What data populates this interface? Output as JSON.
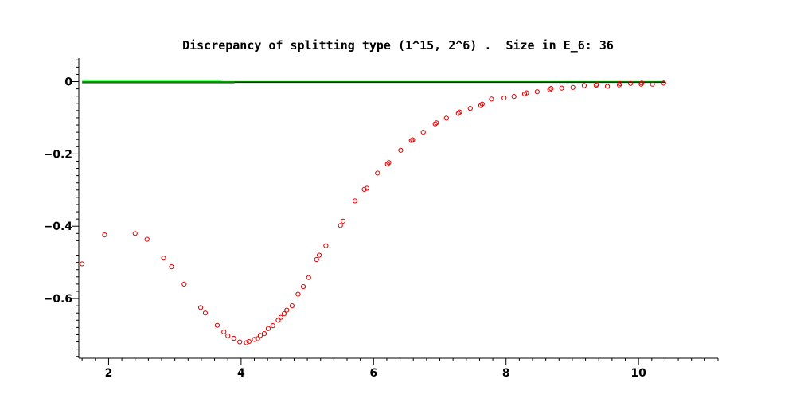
{
  "chart_data": {
    "type": "scatter",
    "title": "Discrepancy of splitting type (1^15, 2^6) .  Size in E_6: 36",
    "xlabel": "",
    "ylabel": "",
    "xlim": [
      1.55,
      11.2
    ],
    "ylim": [
      -0.765,
      0.065
    ],
    "x_ticks": [
      2,
      4,
      6,
      8,
      10
    ],
    "x_tick_labels": [
      "2",
      "4",
      "6",
      "8",
      "10"
    ],
    "y_ticks": [
      0,
      -0.2,
      -0.4,
      -0.6
    ],
    "y_tick_labels": [
      "0",
      "−0.2",
      "−0.4",
      "−0.6"
    ],
    "grid": false,
    "legend": "none",
    "colors": {
      "points": "#e00000",
      "line_green": "#00a000",
      "line_dark": "#003300",
      "line_light": "#55cc55"
    },
    "lines": [
      {
        "x": [
          1.6,
          3.7
        ],
        "y": [
          0.004,
          0.004
        ],
        "color": "#55cc55"
      },
      {
        "x": [
          1.6,
          3.9
        ],
        "y": [
          -0.003,
          -0.003
        ],
        "color": "#003300"
      },
      {
        "x": [
          1.6,
          10.4
        ],
        "y": [
          0.0,
          0.0
        ],
        "color": "#00a000"
      },
      {
        "x": [
          3.9,
          10.4
        ],
        "y": [
          -0.002,
          -0.002
        ],
        "color": "#003300"
      }
    ],
    "series": [
      {
        "marker": "circle",
        "color": "#e00000",
        "x": [
          1.6,
          1.94,
          2.4,
          2.58,
          2.83,
          2.95,
          3.14,
          3.39,
          3.46,
          3.64,
          3.74,
          3.8,
          3.89,
          3.98,
          4.08,
          4.12,
          4.2,
          4.25,
          4.29,
          4.35,
          4.41,
          4.48,
          4.56,
          4.6,
          4.65,
          4.69,
          4.77,
          4.86,
          4.94,
          5.02,
          5.14,
          5.18,
          5.28,
          5.5,
          5.54,
          5.72,
          5.86,
          5.9,
          6.06,
          6.21,
          6.23,
          6.41,
          6.57,
          6.59,
          6.75,
          6.93,
          6.95,
          7.1,
          7.28,
          7.3,
          7.46,
          7.62,
          7.64,
          7.78,
          7.97,
          8.12,
          8.28,
          8.31,
          8.47,
          8.66,
          8.68,
          8.84,
          9.01,
          9.18,
          9.36,
          9.37,
          9.53,
          9.71,
          9.72,
          9.88,
          10.04,
          10.05,
          10.21,
          10.38
        ],
        "y": [
          -0.504,
          -0.424,
          -0.42,
          -0.436,
          -0.488,
          -0.512,
          -0.56,
          -0.625,
          -0.64,
          -0.674,
          -0.692,
          -0.703,
          -0.71,
          -0.72,
          -0.722,
          -0.719,
          -0.713,
          -0.711,
          -0.702,
          -0.697,
          -0.683,
          -0.675,
          -0.66,
          -0.652,
          -0.642,
          -0.632,
          -0.62,
          -0.588,
          -0.567,
          -0.542,
          -0.492,
          -0.48,
          -0.454,
          -0.398,
          -0.386,
          -0.33,
          -0.298,
          -0.295,
          -0.253,
          -0.228,
          -0.224,
          -0.19,
          -0.163,
          -0.161,
          -0.14,
          -0.117,
          -0.114,
          -0.101,
          -0.088,
          -0.084,
          -0.074,
          -0.066,
          -0.062,
          -0.048,
          -0.045,
          -0.041,
          -0.034,
          -0.031,
          -0.028,
          -0.022,
          -0.019,
          -0.018,
          -0.016,
          -0.011,
          -0.01,
          -0.007,
          -0.013,
          -0.009,
          -0.005,
          -0.005,
          -0.007,
          -0.004,
          -0.007,
          -0.004
        ]
      }
    ]
  }
}
